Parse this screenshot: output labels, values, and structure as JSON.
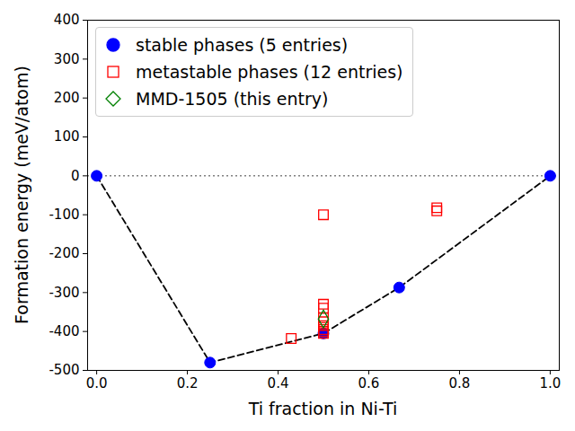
{
  "chart_data": {
    "type": "scatter",
    "x_label": "Ti fraction in Ni-Ti",
    "y_label": "Formation energy (meV/atom)",
    "xlim": [
      -0.02,
      1.02
    ],
    "ylim": [
      -500,
      400
    ],
    "xticks": [
      {
        "value": 0,
        "label": "0.0"
      },
      {
        "value": 0.2,
        "label": "0.2"
      },
      {
        "value": 0.4,
        "label": "0.4"
      },
      {
        "value": 0.6,
        "label": "0.6"
      },
      {
        "value": 0.8,
        "label": "0.8"
      },
      {
        "value": 1,
        "label": "1.0"
      }
    ],
    "yticks": [
      -500,
      -400,
      -300,
      -200,
      -100,
      0,
      100,
      200,
      300,
      400
    ],
    "grid": false,
    "legend": "upper left",
    "hline": {
      "value": 0,
      "color": "gray",
      "line_style": "dotted"
    },
    "series": [
      {
        "type": "line",
        "color": "black",
        "line_style": "dashed",
        "x": [
          0,
          0.25,
          0.5,
          0.667,
          1
        ],
        "values": [
          0,
          -480,
          -405,
          -287,
          0
        ]
      },
      {
        "name": "stable phases (5 entries)",
        "type": "scatter",
        "color": "#0000ff",
        "marker": "filled_circle",
        "x": [
          0,
          0.25,
          0.5,
          0.667,
          1
        ],
        "values": [
          0,
          -480,
          -405,
          -287,
          0
        ]
      },
      {
        "name": "metastable phases (12 entries)",
        "type": "scatter",
        "color": "#ff0000",
        "marker": "open_square",
        "x": [
          0.429,
          0.5,
          0.5,
          0.5,
          0.5,
          0.5,
          0.5,
          0.5,
          0.5,
          0.5,
          0.75,
          0.75
        ],
        "values": [
          -418,
          -100,
          -330,
          -340,
          -365,
          -375,
          -385,
          -395,
          -400,
          -405,
          -82,
          -90
        ]
      },
      {
        "name": "MMD-1505 (this entry)",
        "type": "scatter",
        "color": "#008000",
        "marker": "open_diamond",
        "x": [
          0.5
        ],
        "values": [
          -368
        ]
      }
    ]
  }
}
